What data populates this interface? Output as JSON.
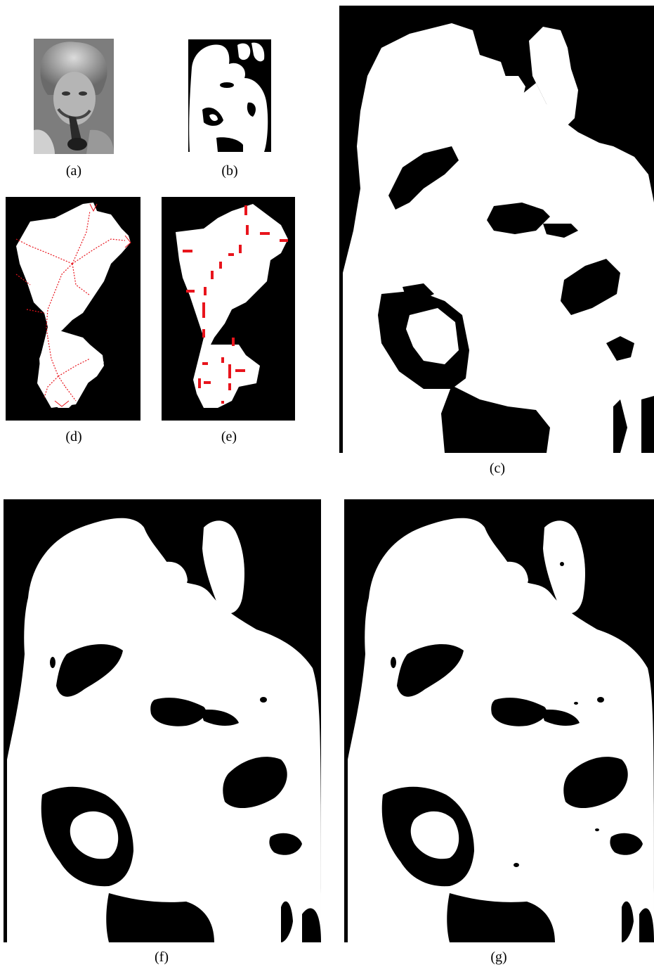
{
  "figure": {
    "captions": {
      "a": "(a)",
      "b": "(b)",
      "c": "(c)",
      "d": "(d)",
      "e": "(e)",
      "f": "(f)",
      "g": "(g)"
    },
    "colors": {
      "background": "#000000",
      "foreground": "#ffffff",
      "skeleton": "#e8141c",
      "photo_gray": "#8a8a8a"
    }
  }
}
